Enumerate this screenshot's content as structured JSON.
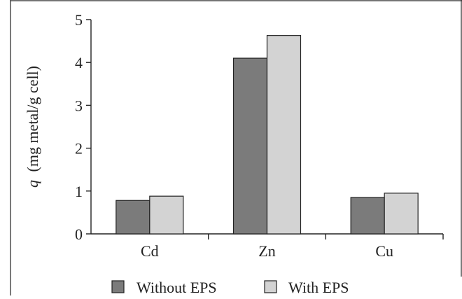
{
  "chart_data": {
    "type": "bar",
    "title": "",
    "xlabel": "",
    "ylabel": "(mg metal/g cell)",
    "ylabel_prefix": "q",
    "categories": [
      "Cd",
      "Zn",
      "Cu"
    ],
    "series": [
      {
        "name": "Without EPS",
        "values": [
          0.78,
          4.1,
          0.85
        ],
        "color": "#7b7b7b"
      },
      {
        "name": "With EPS",
        "values": [
          0.88,
          4.63,
          0.95
        ],
        "color": "#d3d3d3"
      }
    ],
    "ylim": [
      0,
      5
    ],
    "yticks": [
      0,
      1,
      2,
      3,
      4,
      5
    ],
    "ytick_labels": [
      "0",
      "1",
      "2",
      "3",
      "4",
      "5"
    ],
    "grid": false,
    "legend_position": "bottom"
  }
}
